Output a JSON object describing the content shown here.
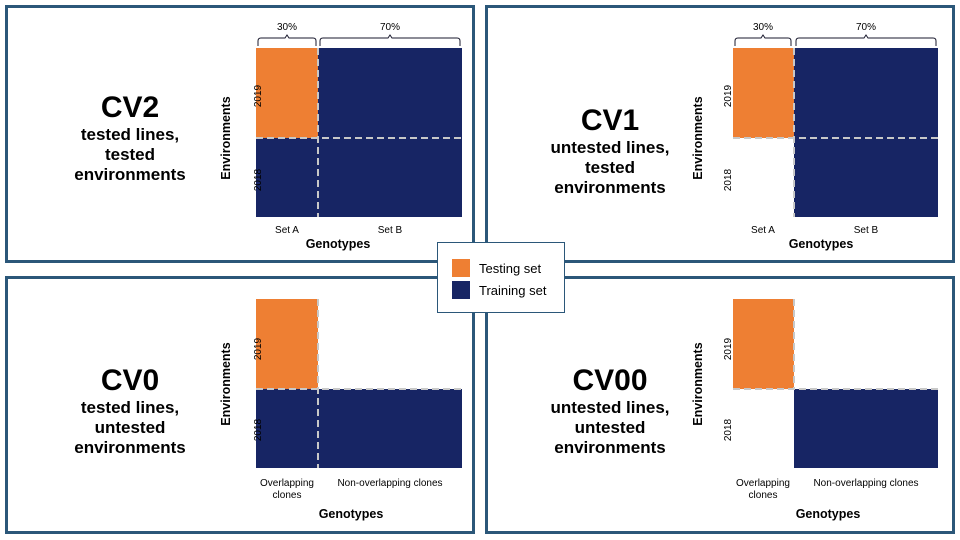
{
  "legend": {
    "items": [
      {
        "label": "Testing set",
        "color": "#ee7f33"
      },
      {
        "label": "Training set",
        "color": "#172564"
      }
    ]
  },
  "colors": {
    "testing": "#ee7f33",
    "training": "#172564",
    "border": "#2b5779",
    "divider": "#c8c8c8"
  },
  "panels": {
    "cv2": {
      "name": "CV2",
      "line1": "tested lines,",
      "line2": "tested",
      "line3": "environments",
      "ylabel": "Environments",
      "xlabel": "Genotypes",
      "year_top": "2019",
      "year_bottom": "2018",
      "col_a": "Set A",
      "col_b": "Set B",
      "pct_a": "30%",
      "pct_b": "70%"
    },
    "cv1": {
      "name": "CV1",
      "line1": "untested lines,",
      "line2": "tested",
      "line3": "environments",
      "ylabel": "Environments",
      "xlabel": "Genotypes",
      "year_top": "2019",
      "year_bottom": "2018",
      "col_a": "Set A",
      "col_b": "Set B",
      "pct_a": "30%",
      "pct_b": "70%"
    },
    "cv0": {
      "name": "CV0",
      "line1": "tested lines,",
      "line2": "untested",
      "line3": "environments",
      "ylabel": "Environments",
      "xlabel": "Genotypes",
      "year_top": "2019",
      "year_bottom": "2018",
      "col_a_line1": "Overlapping",
      "col_a_line2": "clones",
      "col_b": "Non-overlapping clones"
    },
    "cv00": {
      "name": "CV00",
      "line1": "untested lines,",
      "line2": "untested",
      "line3": "environments",
      "ylabel": "Environments",
      "xlabel": "Genotypes",
      "year_top": "2019",
      "year_bottom": "2018",
      "col_a_line1": "Overlapping",
      "col_a_line2": "clones",
      "col_b": "Non-overlapping clones"
    }
  }
}
